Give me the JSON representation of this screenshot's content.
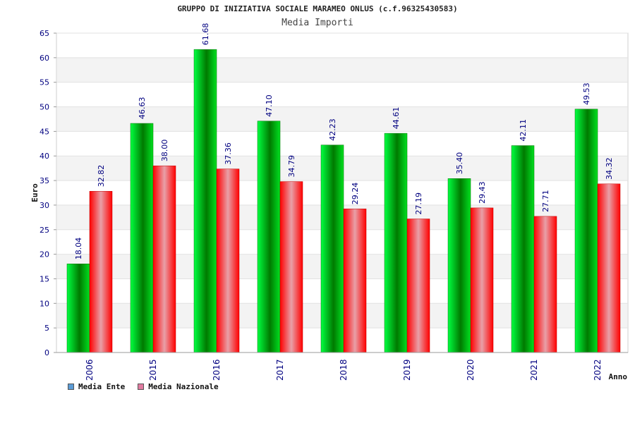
{
  "chart_data": {
    "type": "bar",
    "title": "GRUPPO DI INIZIATIVA SOCIALE MARAMEO ONLUS (c.f.96325430583)",
    "subtitle": "Media Importi",
    "xlabel": "Anno",
    "ylabel": "Euro",
    "ylim": [
      0,
      65
    ],
    "ytick_step": 5,
    "categories": [
      "2006",
      "2015",
      "2016",
      "2017",
      "2018",
      "2019",
      "2020",
      "2021",
      "2022"
    ],
    "series": [
      {
        "name": "Media Ente",
        "legend_color": "#5b9bd5",
        "color": "#00c000",
        "values": [
          18.04,
          46.63,
          61.68,
          47.1,
          42.23,
          44.61,
          35.4,
          42.11,
          49.53
        ],
        "labels": [
          "18.04",
          "46.63",
          "61.68",
          "47.10",
          "42.23",
          "44.61",
          "35.40",
          "42.11",
          "49.53"
        ]
      },
      {
        "name": "Media Nazionale",
        "legend_color": "#e07ba0",
        "color": "#ff1a1a",
        "values": [
          32.82,
          38.0,
          37.36,
          34.79,
          29.24,
          27.19,
          29.43,
          27.71,
          34.32
        ],
        "labels": [
          "32.82",
          "38.00",
          "37.36",
          "34.79",
          "29.24",
          "27.19",
          "29.43",
          "27.71",
          "34.32"
        ]
      }
    ],
    "grid": true,
    "legend_position": "bottom-left"
  }
}
